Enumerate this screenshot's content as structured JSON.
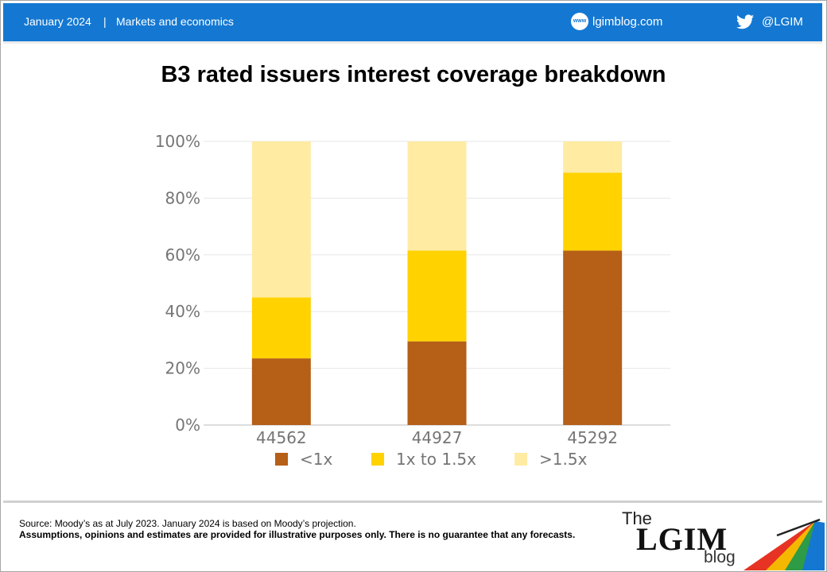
{
  "header": {
    "date": "January 2024",
    "separator": "|",
    "section": "Markets and economics",
    "website": "lgimblog.com",
    "www_badge": "www",
    "twitter_handle": "@LGIM"
  },
  "chart_data": {
    "type": "bar",
    "stacked": true,
    "title": "B3 rated issuers interest coverage breakdown",
    "categories": [
      "44562",
      "44927",
      "45292"
    ],
    "series": [
      {
        "name": "<1x",
        "color": "#b55f17",
        "values": [
          23.5,
          29.5,
          61.5
        ]
      },
      {
        "name": "1x to 1.5x",
        "color": "#ffd200",
        "values": [
          21.5,
          32.0,
          27.5
        ]
      },
      {
        "name": ">1.5x",
        "color": "#ffeba2",
        "values": [
          55.0,
          38.5,
          11.0
        ]
      }
    ],
    "ylim": [
      0,
      100
    ],
    "yticks": [
      "0%",
      "20%",
      "40%",
      "60%",
      "80%",
      "100%"
    ],
    "grid": true,
    "legend_position": "bottom"
  },
  "footer": {
    "source": "Source: Moody’s as at July 2023. January 2024 is based on Moody’s projection.",
    "disclaimer": "Assumptions, opinions and estimates are provided for illustrative purposes only. There is no guarantee that any forecasts.",
    "logo_the": "The",
    "logo_lgim": "LGIM",
    "logo_blog": "blog"
  }
}
